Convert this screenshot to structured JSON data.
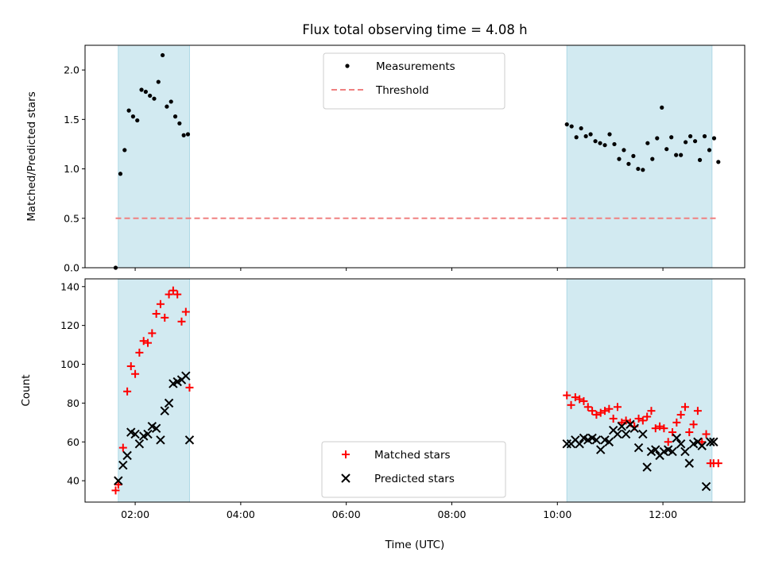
{
  "chart_data": [
    {
      "type": "scatter",
      "title": "Flux total observing time = 4.08 h",
      "xlabel": "",
      "ylabel": "Matched/Predicted stars",
      "ylim": [
        0,
        2.25
      ],
      "yticks": [
        0.0,
        0.5,
        1.0,
        1.5,
        2.0
      ],
      "ytick_labels": [
        "0.0",
        "0.5",
        "1.0",
        "1.5",
        "2.0"
      ],
      "xlim": [
        1.05,
        13.55
      ],
      "legend_position": "top-center",
      "observing_windows": [
        [
          1.68,
          3.03
        ],
        [
          10.18,
          12.93
        ]
      ],
      "window_color": "#add8e6",
      "series": [
        {
          "name": "Measurements",
          "marker": "dot",
          "color": "#000000",
          "x": [
            1.63,
            1.72,
            1.8,
            1.88,
            1.96,
            2.04,
            2.12,
            2.2,
            2.28,
            2.36,
            2.44,
            2.52,
            2.6,
            2.68,
            2.76,
            2.84,
            2.92,
            3.0,
            10.18,
            10.27,
            10.36,
            10.45,
            10.54,
            10.63,
            10.72,
            10.81,
            10.9,
            10.99,
            11.08,
            11.17,
            11.26,
            11.35,
            11.44,
            11.53,
            11.62,
            11.71,
            11.8,
            11.89,
            11.98,
            12.07,
            12.16,
            12.25,
            12.34,
            12.43,
            12.52,
            12.61,
            12.7,
            12.79,
            12.88,
            12.97,
            13.05
          ],
          "y": [
            0.0,
            0.95,
            1.19,
            1.59,
            1.53,
            1.49,
            1.8,
            1.78,
            1.74,
            1.71,
            1.88,
            2.15,
            1.63,
            1.68,
            1.53,
            1.46,
            1.34,
            1.35,
            1.45,
            1.43,
            1.32,
            1.41,
            1.33,
            1.35,
            1.28,
            1.26,
            1.24,
            1.35,
            1.25,
            1.1,
            1.19,
            1.05,
            1.13,
            1.0,
            0.99,
            1.26,
            1.1,
            1.31,
            1.62,
            1.2,
            1.32,
            1.14,
            1.14,
            1.27,
            1.33,
            1.28,
            1.09,
            1.33,
            1.19,
            1.31,
            1.07
          ]
        },
        {
          "name": "Threshold",
          "marker": "dashed-line",
          "color": "#f08080",
          "x": [
            1.63,
            13.05
          ],
          "y": [
            0.5,
            0.5
          ]
        }
      ]
    },
    {
      "type": "scatter",
      "title": "",
      "xlabel": "Time (UTC)",
      "ylabel": "Count",
      "ylim": [
        29,
        144
      ],
      "yticks": [
        40,
        60,
        80,
        100,
        120,
        140
      ],
      "ytick_labels": [
        "40",
        "60",
        "80",
        "100",
        "120",
        "140"
      ],
      "xlim": [
        1.05,
        13.55
      ],
      "xticks": [
        2,
        4,
        6,
        8,
        10,
        12
      ],
      "xtick_labels": [
        "02:00",
        "04:00",
        "06:00",
        "08:00",
        "10:00",
        "12:00"
      ],
      "legend_position": "bottom-center",
      "observing_windows": [
        [
          1.68,
          3.03
        ],
        [
          10.18,
          12.93
        ]
      ],
      "window_color": "#add8e6",
      "series": [
        {
          "name": "Matched stars",
          "marker": "plus",
          "color": "#ff0000",
          "x": [
            1.63,
            1.68,
            1.77,
            1.85,
            1.92,
            2.0,
            2.08,
            2.16,
            2.24,
            2.32,
            2.4,
            2.48,
            2.56,
            2.64,
            2.72,
            2.8,
            2.88,
            2.96,
            3.03,
            10.18,
            10.26,
            10.34,
            10.42,
            10.5,
            10.58,
            10.66,
            10.74,
            10.82,
            10.9,
            10.98,
            11.06,
            11.14,
            11.22,
            11.3,
            11.38,
            11.46,
            11.54,
            11.62,
            11.7,
            11.78,
            11.86,
            11.94,
            12.02,
            12.1,
            12.18,
            12.26,
            12.34,
            12.42,
            12.5,
            12.58,
            12.66,
            12.74,
            12.82,
            12.9,
            12.96,
            13.05
          ],
          "y": [
            35,
            38,
            57,
            86,
            99,
            95,
            106,
            112,
            111,
            116,
            126,
            131,
            124,
            136,
            138,
            136,
            122,
            127,
            88,
            84,
            79,
            83,
            82,
            81,
            78,
            76,
            74,
            75,
            76,
            77,
            72,
            78,
            70,
            71,
            70,
            68,
            72,
            71,
            73,
            76,
            67,
            68,
            67,
            60,
            65,
            70,
            74,
            78,
            65,
            69,
            76,
            60,
            64,
            49,
            49,
            49
          ],
          "note_omit": true
        },
        {
          "name": "Predicted stars",
          "marker": "x",
          "color": "#000000",
          "x": [
            1.68,
            1.77,
            1.85,
            1.92,
            2.0,
            2.08,
            2.16,
            2.24,
            2.32,
            2.4,
            2.48,
            2.56,
            2.64,
            2.72,
            2.8,
            2.88,
            2.96,
            3.03,
            10.18,
            10.26,
            10.34,
            10.42,
            10.5,
            10.58,
            10.66,
            10.74,
            10.82,
            10.9,
            10.98,
            11.06,
            11.14,
            11.22,
            11.3,
            11.38,
            11.46,
            11.54,
            11.62,
            11.7,
            11.78,
            11.86,
            11.94,
            12.02,
            12.1,
            12.18,
            12.26,
            12.34,
            12.42,
            12.5,
            12.58,
            12.66,
            12.74,
            12.82,
            12.9,
            12.96
          ],
          "y": [
            40,
            48,
            53,
            65,
            64,
            59,
            63,
            64,
            68,
            67,
            61,
            76,
            80,
            90,
            91,
            92,
            94,
            61,
            59,
            59,
            61,
            59,
            62,
            61,
            62,
            61,
            56,
            61,
            60,
            66,
            64,
            68,
            64,
            69,
            67,
            57,
            64,
            47,
            55,
            56,
            53,
            55,
            56,
            55,
            62,
            59,
            55,
            49,
            59,
            60,
            58,
            37,
            60,
            60
          ]
        }
      ]
    }
  ]
}
